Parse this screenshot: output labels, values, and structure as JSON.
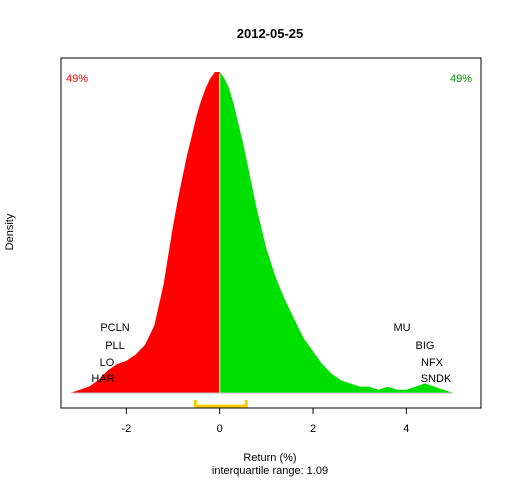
{
  "chart_data": {
    "type": "area",
    "title": "2012-05-25",
    "xlabel": "Return (%)",
    "sublabel": "interquartile range: 1.09",
    "ylabel": "Density",
    "xlim": [
      -3.4,
      5.6
    ],
    "ylim": [
      0,
      1.05
    ],
    "x_ticks": [
      -2,
      0,
      2,
      4
    ],
    "grid": false,
    "split_at": 0,
    "negative_share": "49%",
    "positive_share": "49%",
    "colors": {
      "negative": "#ff0000",
      "positive": "#00e000",
      "iqr": "#ffcc00",
      "baseline": "#bebebe"
    },
    "iqr": [
      -0.52,
      0.57
    ],
    "density": {
      "x": [
        -3.2,
        -3.0,
        -2.8,
        -2.6,
        -2.4,
        -2.2,
        -2.0,
        -1.8,
        -1.6,
        -1.4,
        -1.2,
        -1.1,
        -1.0,
        -0.9,
        -0.8,
        -0.7,
        -0.6,
        -0.5,
        -0.4,
        -0.3,
        -0.2,
        -0.1,
        0.0,
        0.1,
        0.2,
        0.3,
        0.4,
        0.5,
        0.6,
        0.7,
        0.8,
        0.9,
        1.0,
        1.2,
        1.4,
        1.6,
        1.8,
        2.0,
        2.2,
        2.4,
        2.6,
        2.8,
        3.0,
        3.2,
        3.4,
        3.6,
        3.8,
        4.0,
        4.2,
        4.4,
        4.6,
        4.8,
        5.0
      ],
      "y": [
        0.0,
        0.01,
        0.02,
        0.04,
        0.07,
        0.09,
        0.1,
        0.12,
        0.15,
        0.21,
        0.34,
        0.43,
        0.52,
        0.6,
        0.67,
        0.74,
        0.8,
        0.86,
        0.91,
        0.95,
        0.98,
        1.0,
        1.0,
        0.98,
        0.95,
        0.9,
        0.84,
        0.78,
        0.71,
        0.64,
        0.57,
        0.51,
        0.45,
        0.36,
        0.29,
        0.23,
        0.17,
        0.13,
        0.09,
        0.06,
        0.04,
        0.03,
        0.02,
        0.02,
        0.01,
        0.02,
        0.01,
        0.01,
        0.02,
        0.03,
        0.02,
        0.01,
        0.0
      ]
    },
    "left_labels": [
      "PCLN",
      "PLL",
      "LO",
      "HAR"
    ],
    "right_labels": [
      "MU",
      "BIG",
      "NFX",
      "SNDK"
    ]
  }
}
